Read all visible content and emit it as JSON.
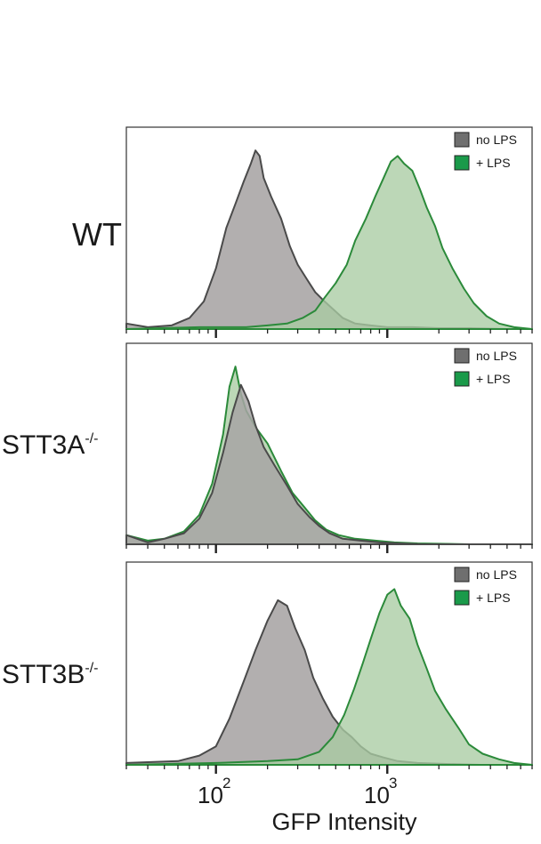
{
  "chart_data": {
    "type": "area",
    "xlabel": "GFP Intensity",
    "xscale": "log",
    "xlim": [
      30,
      7000
    ],
    "x_ticks": [
      {
        "value": 100,
        "base": "10",
        "exp": "2"
      },
      {
        "value": 1000,
        "base": "10",
        "exp": "3"
      }
    ],
    "colors": {
      "no_lps_fill": "#a7a4a4",
      "no_lps_stroke": "#4a4a4a",
      "lps_fill": "#a9cca3",
      "lps_stroke": "#2b8a3a",
      "legend_gray": "#6f6f6f",
      "legend_green": "#1a9a4a"
    },
    "panels": [
      {
        "label": "WT",
        "legend": [
          {
            "name": "no LPS",
            "color": "#6f6f6f"
          },
          {
            "name": "+ LPS",
            "color": "#1a9a4a"
          }
        ],
        "series": [
          {
            "name": "no LPS",
            "x": [
              30,
              40,
              55,
              70,
              85,
              100,
              115,
              130,
              145,
              160,
              170,
              180,
              190,
              210,
              240,
              270,
              300,
              340,
              380,
              430,
              480,
              550,
              650,
              800,
              1000,
              1400,
              2000,
              3000,
              5000,
              7000
            ],
            "y": [
              0.03,
              0.01,
              0.02,
              0.06,
              0.15,
              0.33,
              0.55,
              0.68,
              0.8,
              0.9,
              0.97,
              0.94,
              0.82,
              0.72,
              0.6,
              0.45,
              0.35,
              0.27,
              0.2,
              0.15,
              0.11,
              0.06,
              0.03,
              0.02,
              0.01,
              0.01,
              0.005,
              0.005,
              0,
              0
            ]
          },
          {
            "name": "+ LPS",
            "x": [
              30,
              80,
              150,
              200,
              260,
              320,
              380,
              430,
              500,
              580,
              650,
              750,
              850,
              950,
              1050,
              1150,
              1250,
              1400,
              1550,
              1700,
              1900,
              2100,
              2400,
              2800,
              3200,
              3800,
              4500,
              5500,
              7000
            ],
            "y": [
              0,
              0.01,
              0.01,
              0.02,
              0.03,
              0.06,
              0.1,
              0.17,
              0.25,
              0.35,
              0.48,
              0.6,
              0.72,
              0.82,
              0.91,
              0.94,
              0.9,
              0.86,
              0.76,
              0.66,
              0.56,
              0.44,
              0.33,
              0.22,
              0.14,
              0.07,
              0.03,
              0.01,
              0
            ]
          }
        ]
      },
      {
        "label": "STT3A",
        "label_sup": "-/-",
        "legend": [
          {
            "name": "no LPS",
            "color": "#6f6f6f"
          },
          {
            "name": "+ LPS",
            "color": "#1a9a4a"
          }
        ],
        "series": [
          {
            "name": "no LPS",
            "x": [
              30,
              40,
              50,
              65,
              80,
              95,
              110,
              125,
              140,
              155,
              170,
              190,
              220,
              260,
              300,
              350,
              400,
              460,
              550,
              700,
              900,
              1200,
              1600,
              3000,
              7000
            ],
            "y": [
              0.05,
              0.01,
              0.03,
              0.06,
              0.14,
              0.28,
              0.5,
              0.72,
              0.87,
              0.78,
              0.65,
              0.53,
              0.43,
              0.32,
              0.22,
              0.15,
              0.1,
              0.06,
              0.03,
              0.02,
              0.01,
              0.005,
              0,
              0,
              0
            ]
          },
          {
            "name": "+ LPS",
            "x": [
              30,
              40,
              50,
              65,
              80,
              95,
              110,
              120,
              130,
              140,
              150,
              170,
              200,
              240,
              280,
              330,
              380,
              440,
              520,
              650,
              850,
              1100,
              1500,
              3000,
              7000
            ],
            "y": [
              0.05,
              0.02,
              0.03,
              0.07,
              0.16,
              0.33,
              0.6,
              0.86,
              0.97,
              0.82,
              0.73,
              0.64,
              0.55,
              0.4,
              0.28,
              0.2,
              0.13,
              0.08,
              0.05,
              0.03,
              0.02,
              0.01,
              0.005,
              0,
              0
            ]
          }
        ]
      },
      {
        "label": "STT3B",
        "label_sup": "-/-",
        "legend": [
          {
            "name": "no LPS",
            "color": "#6f6f6f"
          },
          {
            "name": "+ LPS",
            "color": "#1a9a4a"
          }
        ],
        "series": [
          {
            "name": "no LPS",
            "x": [
              30,
              60,
              80,
              100,
              120,
              145,
              170,
              200,
              230,
              260,
              290,
              330,
              370,
              420,
              480,
              550,
              620,
              700,
              800,
              950,
              1150,
              1500,
              2200,
              3500,
              7000
            ],
            "y": [
              0.01,
              0.02,
              0.05,
              0.1,
              0.25,
              0.45,
              0.62,
              0.78,
              0.89,
              0.86,
              0.74,
              0.62,
              0.47,
              0.36,
              0.26,
              0.19,
              0.15,
              0.1,
              0.06,
              0.04,
              0.02,
              0.01,
              0.005,
              0,
              0
            ]
          },
          {
            "name": "+ LPS",
            "x": [
              30,
              100,
              200,
              300,
              400,
              480,
              560,
              640,
              720,
              800,
              900,
              1000,
              1100,
              1200,
              1350,
              1500,
              1700,
              1900,
              2200,
              2600,
              3000,
              3600,
              4500,
              5500,
              7000
            ],
            "y": [
              0,
              0.01,
              0.02,
              0.03,
              0.07,
              0.15,
              0.27,
              0.41,
              0.55,
              0.68,
              0.82,
              0.92,
              0.95,
              0.86,
              0.79,
              0.65,
              0.52,
              0.4,
              0.3,
              0.2,
              0.11,
              0.06,
              0.03,
              0.01,
              0
            ]
          }
        ]
      }
    ]
  }
}
